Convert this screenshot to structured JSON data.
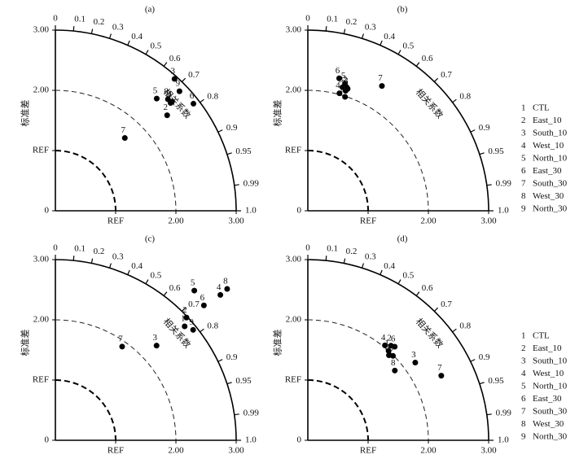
{
  "chart_data": [
    {
      "type": "taylor",
      "title": "(a)",
      "ylabel": "标准差",
      "arc_label": "相关系数",
      "ylim": [
        0,
        3
      ],
      "yticks": [
        0,
        {
          "value": 1,
          "label": "REF"
        },
        {
          "value": 2,
          "label": "2.00"
        },
        {
          "value": 3,
          "label": "3.00"
        }
      ],
      "xticks": [
        {
          "value": 1,
          "label": "REF"
        },
        {
          "value": 2,
          "label": "2.00"
        },
        {
          "value": 3,
          "label": "3.00"
        }
      ],
      "corr_ticks": [
        0,
        0.1,
        0.2,
        0.3,
        0.4,
        0.5,
        0.6,
        0.7,
        0.8,
        0.9,
        0.95,
        0.99,
        {
          "value": 1,
          "label": "1.0"
        }
      ],
      "reference_std": 1,
      "color": "#000000",
      "points": {
        "labels": [
          "1",
          "2",
          "3",
          "4",
          "5",
          "6",
          "7",
          "8",
          "9"
        ],
        "std": [
          2.65,
          2.44,
          2.95,
          2.62,
          2.51,
          2.9,
          1.67,
          2.63,
          2.86
        ],
        "corr": [
          0.73,
          0.76,
          0.67,
          0.73,
          0.67,
          0.79,
          0.69,
          0.71,
          0.72
        ]
      }
    },
    {
      "type": "taylor",
      "title": "(b)",
      "ylabel": "标准差",
      "arc_label": "相关系数",
      "ylim": [
        0,
        3
      ],
      "yticks": [
        0,
        {
          "value": 1,
          "label": "REF"
        },
        {
          "value": 2,
          "label": "2.00"
        },
        {
          "value": 3,
          "label": "3.00"
        }
      ],
      "xticks": [
        {
          "value": 1,
          "label": "REF"
        },
        {
          "value": 2,
          "label": "2.00"
        },
        {
          "value": 3,
          "label": "3.00"
        }
      ],
      "corr_ticks": [
        0,
        0.1,
        0.2,
        0.3,
        0.4,
        0.5,
        0.6,
        0.7,
        0.8,
        0.9,
        0.95,
        0.99,
        {
          "value": 1,
          "label": "1.0"
        }
      ],
      "reference_std": 1,
      "color": "#000000",
      "points": {
        "labels": [
          "1",
          "2",
          "3",
          "4",
          "5",
          "6",
          "7",
          "8",
          "9"
        ],
        "std": [
          2.09,
          2.15,
          2.13,
          2.02,
          2.2,
          2.26,
          2.41,
          2.13,
          1.99
        ],
        "corr": [
          0.3,
          0.3,
          0.31,
          0.26,
          0.28,
          0.23,
          0.51,
          0.27,
          0.31
        ]
      }
    },
    {
      "type": "taylor",
      "title": "(c)",
      "ylabel": "标准差",
      "arc_label": "相关系数",
      "ylim": [
        0,
        3
      ],
      "yticks": [
        0,
        {
          "value": 1,
          "label": "REF"
        },
        {
          "value": 2,
          "label": "2.00"
        },
        {
          "value": 3,
          "label": "3.00"
        }
      ],
      "xticks": [
        {
          "value": 1,
          "label": "REF"
        },
        {
          "value": 2,
          "label": "2.00"
        },
        {
          "value": 3,
          "label": "3.00"
        }
      ],
      "corr_ticks": [
        0,
        0.1,
        0.2,
        0.3,
        0.4,
        0.5,
        0.6,
        0.7,
        0.8,
        0.9,
        0.95,
        0.99,
        {
          "value": 1,
          "label": "1.0"
        }
      ],
      "reference_std": 1,
      "color": "#000000",
      "points": {
        "labels": [
          "1",
          "2",
          "3",
          "4",
          "5",
          "6",
          "7",
          "8",
          "9"
        ],
        "std": [
          2.86,
          2.98,
          2.3,
          3.65,
          3.39,
          3.33,
          1.91,
          3.8,
          2.93
        ],
        "corr": [
          0.75,
          0.73,
          0.73,
          0.75,
          0.68,
          0.74,
          0.58,
          0.75,
          0.78
        ]
      }
    },
    {
      "type": "taylor",
      "title": "(d)",
      "ylabel": "标准差",
      "arc_label": "相关系数",
      "ylim": [
        0,
        3
      ],
      "yticks": [
        0,
        {
          "value": 1,
          "label": "REF"
        },
        {
          "value": 2,
          "label": "2.00"
        },
        {
          "value": 3,
          "label": "3.00"
        }
      ],
      "xticks": [
        {
          "value": 1,
          "label": "REF"
        },
        {
          "value": 2,
          "label": "2.00"
        },
        {
          "value": 3,
          "label": "3.00"
        }
      ],
      "corr_ticks": [
        0,
        0.1,
        0.2,
        0.3,
        0.4,
        0.5,
        0.6,
        0.7,
        0.8,
        0.9,
        0.95,
        0.99,
        {
          "value": 1,
          "label": "1.0"
        }
      ],
      "reference_std": 1,
      "color": "#000000",
      "points": {
        "labels": [
          "1",
          "2",
          "3",
          "4",
          "5",
          "6",
          "7",
          "8",
          "9"
        ],
        "std": [
          2.0,
          2.09,
          2.2,
          2.03,
          1.95,
          2.12,
          2.46,
          1.85,
          1.99
        ],
        "corr": [
          0.67,
          0.66,
          0.81,
          0.63,
          0.69,
          0.68,
          0.9,
          0.78,
          0.71
        ]
      }
    }
  ],
  "legend": {
    "numbers": [
      "1",
      "2",
      "3",
      "4",
      "5",
      "6",
      "7",
      "8",
      "9"
    ],
    "names": [
      "CTL",
      "East_10",
      "South_10",
      "West_10",
      "North_10",
      "East_30",
      "South_30",
      "West_30",
      "North_30"
    ]
  }
}
